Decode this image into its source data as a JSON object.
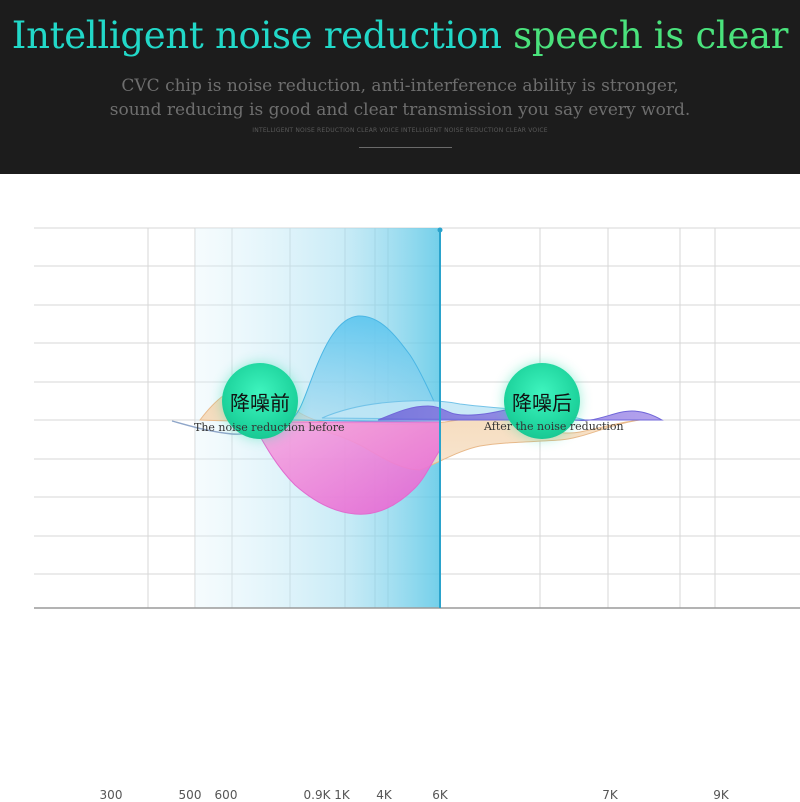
{
  "banner": {
    "title_part1": "Intelligent noise reduction",
    "title_part2": " speech is clear",
    "line1": "CVC chip is noise reduction, anti-interference ability is stronger,",
    "line2": "sound reducing is good and clear transmission you say every word.",
    "tiny": "INTELLIGENT NOISE REDUCTION CLEAR VOICE INTELLIGENT NOISE REDUCTION CLEAR VOICE"
  },
  "chart": {
    "before_badge": "降噪前",
    "before_caption": "The noise reduction before",
    "after_badge": "降噪后",
    "after_caption": "After the noise reduction",
    "ticks": [
      "300",
      "500",
      "600",
      "0.9K",
      "1K",
      "4K",
      "6K",
      "7K",
      "9K"
    ]
  },
  "colors": {
    "banner_bg": "#1c1c1c",
    "title_cyan": "#22d8c8",
    "title_green": "#4ae27c",
    "badge_green": "#1ed49d",
    "highlight_band": "#5bc7e6",
    "marker_line": "#2aa3cc"
  }
}
